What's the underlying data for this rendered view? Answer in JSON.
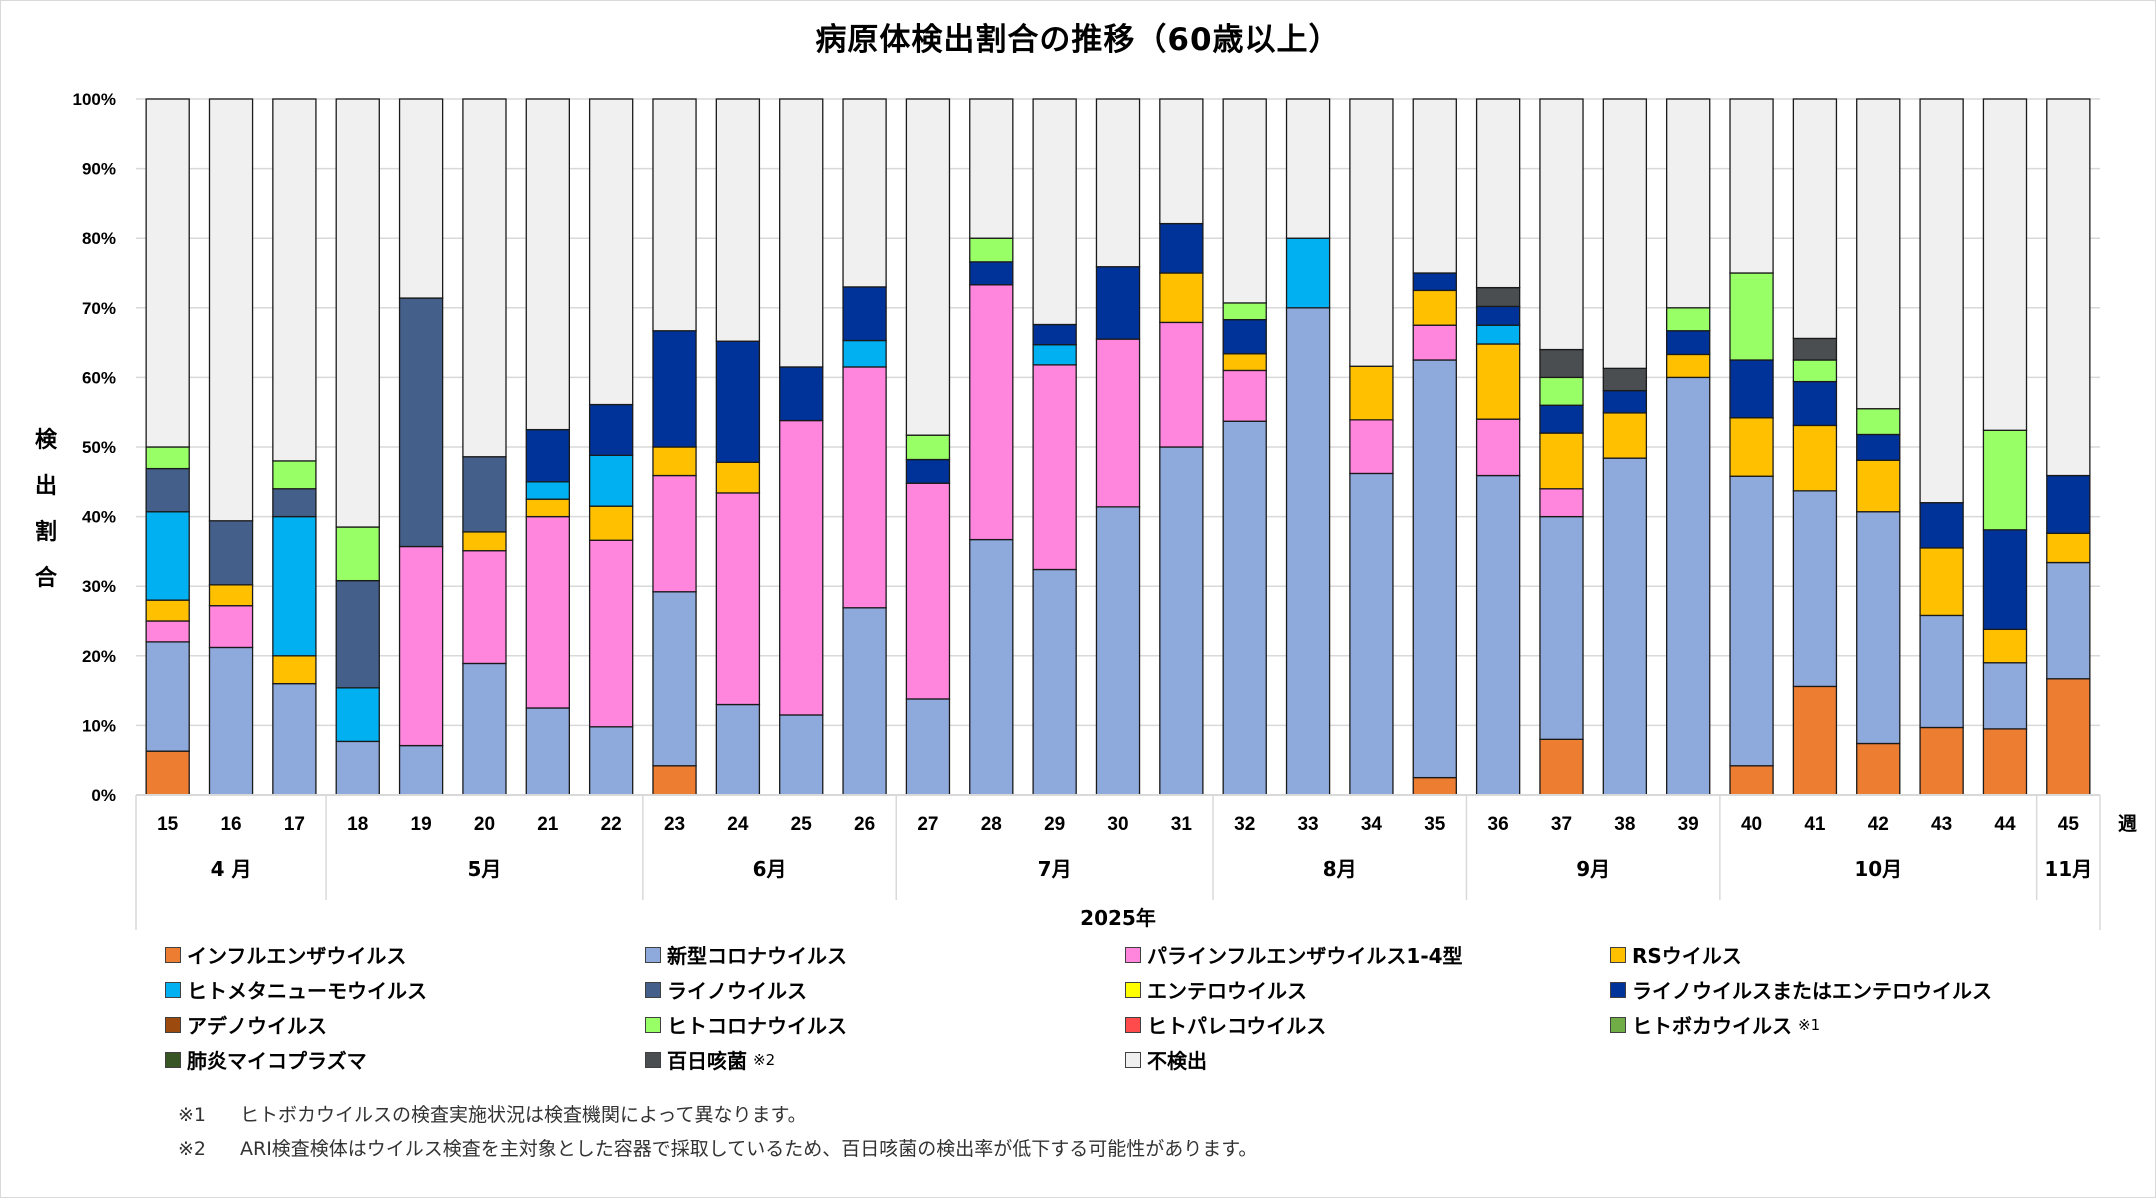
{
  "chart_data": {
    "type": "bar",
    "stacked": true,
    "title": "病原体検出割合の推移（60歳以上）",
    "ylabel": "検出割合",
    "xlabel": "2025年",
    "x_unit_label": "週",
    "ylim": [
      0,
      100
    ],
    "yticks": [
      "0%",
      "10%",
      "20%",
      "30%",
      "40%",
      "50%",
      "60%",
      "70%",
      "80%",
      "90%",
      "100%"
    ],
    "grid": true,
    "legend_position": "bottom",
    "categories": [
      "15",
      "16",
      "17",
      "18",
      "19",
      "20",
      "21",
      "22",
      "23",
      "24",
      "25",
      "26",
      "27",
      "28",
      "29",
      "30",
      "31",
      "32",
      "33",
      "34",
      "35",
      "36",
      "37",
      "38",
      "39",
      "40",
      "41",
      "42",
      "43",
      "44",
      "45"
    ],
    "month_groups": [
      {
        "label": "4 月",
        "weeks": 3
      },
      {
        "label": "5月",
        "weeks": 5
      },
      {
        "label": "6月",
        "weeks": 4
      },
      {
        "label": "7月",
        "weeks": 5
      },
      {
        "label": "8月",
        "weeks": 4
      },
      {
        "label": "9月",
        "weeks": 4
      },
      {
        "label": "10月",
        "weeks": 5
      },
      {
        "label": "11月",
        "weeks": 1
      }
    ],
    "series": [
      {
        "name": "インフルエンザウイルス",
        "color": "#ED7D31",
        "values": [
          6.3,
          0,
          0,
          0,
          0,
          0,
          0,
          0,
          4.2,
          0,
          0,
          0,
          0,
          0,
          0,
          0,
          0,
          0,
          0,
          0,
          2.5,
          0,
          8,
          0,
          0,
          4.2,
          15.6,
          7.4,
          9.7,
          9.5,
          16.7
        ]
      },
      {
        "name": "新型コロナウイルス",
        "color": "#8EA9DB",
        "values": [
          15.7,
          21.2,
          16,
          7.7,
          7.1,
          18.9,
          12.5,
          9.8,
          25,
          13,
          11.5,
          26.9,
          13.8,
          36.7,
          32.4,
          41.4,
          50,
          53.7,
          70,
          46.2,
          60,
          45.9,
          32,
          48.4,
          60,
          41.6,
          28.1,
          33.3,
          16.1,
          9.5,
          16.7
        ]
      },
      {
        "name": "パラインフルエンザウイルス1-4型",
        "color": "#FF85DD",
        "values": [
          3,
          6,
          0,
          0,
          28.6,
          16.2,
          27.5,
          26.8,
          16.7,
          30.4,
          42.3,
          34.6,
          31,
          36.6,
          29.4,
          24.1,
          17.9,
          7.3,
          0,
          7.7,
          5,
          8.1,
          4,
          0,
          0,
          0,
          0,
          0,
          0,
          0,
          0
        ]
      },
      {
        "name": "RSウイルス",
        "color": "#FFC000",
        "values": [
          3,
          3,
          4,
          0,
          0,
          2.7,
          2.5,
          4.9,
          4.1,
          4.4,
          0,
          0,
          0,
          0,
          0,
          0,
          7.1,
          2.4,
          0,
          7.7,
          5,
          10.8,
          8,
          6.5,
          3.3,
          8.4,
          9.4,
          7.4,
          9.7,
          4.8,
          4.2
        ]
      },
      {
        "name": "ヒトメタニューモウイルス",
        "color": "#00B0F0",
        "values": [
          12.7,
          0,
          20,
          7.7,
          0,
          0,
          2.5,
          7.3,
          0,
          0,
          0,
          3.8,
          0,
          0,
          2.9,
          0,
          0,
          0,
          10,
          0,
          0,
          2.7,
          0,
          0,
          0,
          0,
          0,
          0,
          0,
          0,
          0
        ]
      },
      {
        "name": "ライノウイルス",
        "color": "#44608A",
        "values": [
          6.2,
          9.2,
          4,
          15.4,
          35.7,
          10.8,
          0,
          0,
          0,
          0,
          0,
          0,
          0,
          0,
          0,
          0,
          0,
          0,
          0,
          0,
          0,
          0,
          0,
          0,
          0,
          0,
          0,
          0,
          0,
          0,
          0
        ]
      },
      {
        "name": "エンテロウイルス",
        "color": "#FFFF00",
        "values": [
          0,
          0,
          0,
          0,
          0,
          0,
          0,
          0,
          0,
          0,
          0,
          0,
          0,
          0,
          0,
          0,
          0,
          0,
          0,
          0,
          0,
          0,
          0,
          0,
          0,
          0,
          0,
          0,
          0,
          0,
          0
        ]
      },
      {
        "name": "ライノウイルスまたはエンテロウイルス",
        "color": "#003399",
        "values": [
          0,
          0,
          0,
          0,
          0,
          0,
          7.5,
          7.3,
          16.7,
          17.4,
          7.7,
          7.7,
          3.4,
          3.3,
          2.9,
          10.4,
          7.1,
          4.9,
          0,
          0,
          2.5,
          2.7,
          4,
          3.2,
          3.4,
          8.3,
          6.3,
          3.7,
          6.5,
          14.3,
          8.3
        ]
      },
      {
        "name": "アデノウイルス",
        "color": "#9C4A0E",
        "values": [
          0,
          0,
          0,
          0,
          0,
          0,
          0,
          0,
          0,
          0,
          0,
          0,
          0,
          0,
          0,
          0,
          0,
          0,
          0,
          0,
          0,
          0,
          0,
          0,
          0,
          0,
          0,
          0,
          0,
          0,
          0
        ]
      },
      {
        "name": "ヒトコロナウイルス",
        "color": "#99FF66",
        "values": [
          3.1,
          0,
          4,
          7.7,
          0,
          0,
          0,
          0,
          0,
          0,
          0,
          0,
          3.5,
          3.4,
          0,
          0,
          0,
          2.4,
          0,
          0,
          0,
          0,
          4,
          0,
          3.3,
          12.5,
          3.1,
          3.7,
          0,
          14.3,
          0
        ]
      },
      {
        "name": "ヒトパレコウイルス",
        "color": "#FF4B4B",
        "values": [
          0,
          0,
          0,
          0,
          0,
          0,
          0,
          0,
          0,
          0,
          0,
          0,
          0,
          0,
          0,
          0,
          0,
          0,
          0,
          0,
          0,
          0,
          0,
          0,
          0,
          0,
          0,
          0,
          0,
          0,
          0
        ]
      },
      {
        "name": "ヒトボカウイルス",
        "note_mark": "※1",
        "color": "#70AD47",
        "values": [
          0,
          0,
          0,
          0,
          0,
          0,
          0,
          0,
          0,
          0,
          0,
          0,
          0,
          0,
          0,
          0,
          0,
          0,
          0,
          0,
          0,
          0,
          0,
          0,
          0,
          0,
          0,
          0,
          0,
          0,
          0
        ]
      },
      {
        "name": "肺炎マイコプラズマ",
        "color": "#375623",
        "values": [
          0,
          0,
          0,
          0,
          0,
          0,
          0,
          0,
          0,
          0,
          0,
          0,
          0,
          0,
          0,
          0,
          0,
          0,
          0,
          0,
          0,
          0,
          0,
          0,
          0,
          0,
          0,
          0,
          0,
          0,
          0
        ]
      },
      {
        "name": "百日咳菌",
        "note_mark": "※2",
        "color": "#4A4E50",
        "values": [
          0,
          0,
          0,
          0,
          0,
          0,
          0,
          0,
          0,
          0,
          0,
          0,
          0,
          0,
          0,
          0,
          0,
          0,
          0,
          0,
          0,
          2.7,
          4,
          3.2,
          0,
          0,
          3.1,
          0,
          0,
          0,
          0
        ]
      },
      {
        "name": "不検出",
        "color": "#F0F0F0",
        "values": [
          50,
          60.6,
          52,
          61.5,
          28.6,
          51.4,
          47.5,
          43.9,
          33.3,
          34.8,
          38.5,
          27,
          48.3,
          20,
          32.4,
          24.1,
          17.9,
          29.3,
          20,
          38.4,
          25,
          27.1,
          36,
          38.7,
          30,
          25,
          34.4,
          44.5,
          58,
          47.6,
          54.1
        ]
      }
    ]
  },
  "legend_order": [
    0,
    1,
    2,
    3,
    4,
    5,
    6,
    7,
    8,
    9,
    10,
    11,
    12,
    13,
    14
  ],
  "notes": [
    {
      "mark": "※1",
      "text": "ヒトボカウイルスの検査実施状況は検査機関によって異なります。"
    },
    {
      "mark": "※2",
      "text": "ARI検査検体はウイルス検査を主対象とした容器で採取しているため、百日咳菌の検出率が低下する可能性があります。"
    }
  ]
}
